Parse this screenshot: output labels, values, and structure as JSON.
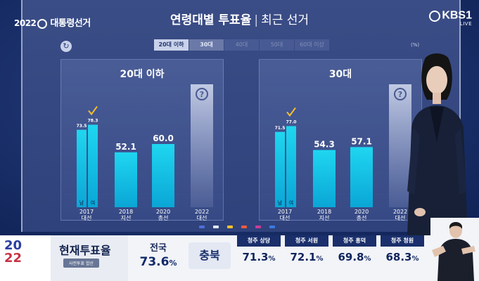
{
  "header": {
    "title": "연령대별 투표율",
    "subtitle": "최근 선거",
    "unit": "(%)"
  },
  "logo": {
    "year": "2022",
    "name": "대통령선거"
  },
  "broadcaster": {
    "name": "KBS",
    "channel": "1",
    "live": "LIVE"
  },
  "tabs": [
    {
      "label": "20대 이하",
      "state": "active"
    },
    {
      "label": "30대",
      "state": "selected"
    },
    {
      "label": "40대",
      "state": "inactive"
    },
    {
      "label": "50대",
      "state": "inactive"
    },
    {
      "label": "60대 이상",
      "state": "inactive"
    }
  ],
  "chart_data": [
    {
      "type": "bar",
      "title": "20대 이하",
      "categories": [
        {
          "year": "2017",
          "name": "대선"
        },
        {
          "year": "2018",
          "name": "지선"
        },
        {
          "year": "2020",
          "name": "총선"
        },
        {
          "year": "2022",
          "name": "대선"
        }
      ],
      "bars": [
        {
          "category": 0,
          "sublabel": "남",
          "value": 73.5
        },
        {
          "category": 0,
          "sublabel": "여",
          "value": 78.3,
          "checked": true
        },
        {
          "category": 1,
          "sublabel": "",
          "value": 52.1
        },
        {
          "category": 2,
          "sublabel": "",
          "value": 60.0
        },
        {
          "category": 3,
          "sublabel": "",
          "value": null,
          "unknown": "?"
        }
      ],
      "value_labels": [
        "73.5",
        "78.3",
        "52.1",
        "60.0"
      ],
      "ylim": [
        0,
        100
      ],
      "bar_color": "#1fd6f0"
    },
    {
      "type": "bar",
      "title": "30대",
      "categories": [
        {
          "year": "2017",
          "name": "대선"
        },
        {
          "year": "2018",
          "name": "지선"
        },
        {
          "year": "2020",
          "name": "총선"
        },
        {
          "year": "2022",
          "name": "대선"
        }
      ],
      "bars": [
        {
          "category": 0,
          "sublabel": "남",
          "value": 71.5
        },
        {
          "category": 0,
          "sublabel": "여",
          "value": 77.0,
          "checked": true
        },
        {
          "category": 1,
          "sublabel": "",
          "value": 54.3
        },
        {
          "category": 2,
          "sublabel": "",
          "value": 57.1
        },
        {
          "category": 3,
          "sublabel": "",
          "value": null,
          "unknown": "?"
        }
      ],
      "value_labels": [
        "71.5",
        "77.0",
        "54.3",
        "57.1"
      ],
      "ylim": [
        0,
        100
      ],
      "bar_color": "#1fd6f0"
    }
  ],
  "bottom_bar": {
    "year_a": "20",
    "year_b": "22",
    "turnout_title": "현재투표율",
    "turnout_note": "사전투표 합산",
    "national": {
      "label": "전국",
      "value": "73.6",
      "unit": "%"
    },
    "region": "충북",
    "districts": [
      {
        "name": "청주 상당",
        "value": "71.3",
        "unit": "%"
      },
      {
        "name": "청주 서원",
        "value": "72.1",
        "unit": "%"
      },
      {
        "name": "청주 흥덕",
        "value": "69.8",
        "unit": "%"
      },
      {
        "name": "청주 청원",
        "value": "68.3",
        "unit": "%"
      }
    ]
  },
  "colors": {
    "accent": "#1fd6f0",
    "check": "#f2c12e",
    "navy": "#1a2f6b"
  }
}
